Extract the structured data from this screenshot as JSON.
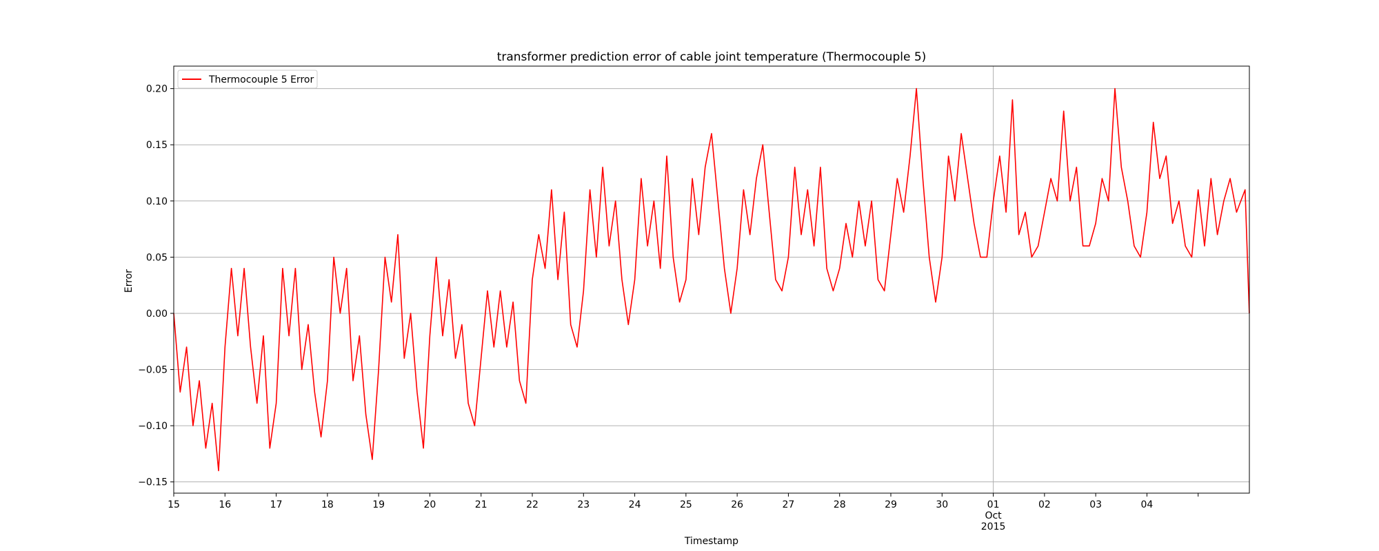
{
  "chart_data": {
    "type": "line",
    "title": "transformer prediction error of cable joint temperature (Thermocouple 5)",
    "xlabel": "Timestamp",
    "ylabel": "Error",
    "xlim": [
      "2015-09-15",
      "2015-10-05"
    ],
    "ylim": [
      -0.16,
      0.22
    ],
    "grid": "horizontal at y ticks; one vertical line at 2015-10-01",
    "legend": {
      "position": "top-left",
      "entries": [
        "Thermocouple 5 Error"
      ]
    },
    "colors": {
      "series": "#ff0000",
      "grid": "#b0b0b0",
      "axes": "#000000"
    },
    "y_ticks": [
      {
        "value": 0.2,
        "label": "0.20"
      },
      {
        "value": 0.15,
        "label": "0.15"
      },
      {
        "value": 0.1,
        "label": "0.10"
      },
      {
        "value": 0.05,
        "label": "0.05"
      },
      {
        "value": 0.0,
        "label": "0.00"
      },
      {
        "value": -0.05,
        "label": "−0.05"
      },
      {
        "value": -0.1,
        "label": "−0.10"
      },
      {
        "value": -0.15,
        "label": "−0.15"
      }
    ],
    "x_ticks": [
      {
        "date": "2015-09-15",
        "label": "15"
      },
      {
        "date": "2015-09-16",
        "label": "16"
      },
      {
        "date": "2015-09-17",
        "label": "17"
      },
      {
        "date": "2015-09-18",
        "label": "18"
      },
      {
        "date": "2015-09-19",
        "label": "19"
      },
      {
        "date": "2015-09-20",
        "label": "20"
      },
      {
        "date": "2015-09-21",
        "label": "21"
      },
      {
        "date": "2015-09-22",
        "label": "22"
      },
      {
        "date": "2015-09-23",
        "label": "23"
      },
      {
        "date": "2015-09-24",
        "label": "24"
      },
      {
        "date": "2015-09-25",
        "label": "25"
      },
      {
        "date": "2015-09-26",
        "label": "26"
      },
      {
        "date": "2015-09-27",
        "label": "27"
      },
      {
        "date": "2015-09-28",
        "label": "28"
      },
      {
        "date": "2015-09-29",
        "label": "29"
      },
      {
        "date": "2015-09-30",
        "label": "30"
      },
      {
        "date": "2015-10-01",
        "label": "01",
        "sublabels": [
          "Oct",
          "2015"
        ]
      },
      {
        "date": "2015-10-02",
        "label": "02"
      },
      {
        "date": "2015-10-03",
        "label": "03"
      },
      {
        "date": "2015-10-04",
        "label": "04"
      },
      {
        "date": "2015-10-05",
        "label": ""
      }
    ],
    "series": [
      {
        "name": "Thermocouple 5 Error",
        "points": [
          [
            "2015-09-15 00:00",
            0.0
          ],
          [
            "2015-09-15 03:00",
            -0.07
          ],
          [
            "2015-09-15 06:00",
            -0.03
          ],
          [
            "2015-09-15 09:00",
            -0.1
          ],
          [
            "2015-09-15 12:00",
            -0.06
          ],
          [
            "2015-09-15 15:00",
            -0.12
          ],
          [
            "2015-09-15 18:00",
            -0.08
          ],
          [
            "2015-09-15 21:00",
            -0.14
          ],
          [
            "2015-09-16 00:00",
            -0.03
          ],
          [
            "2015-09-16 03:00",
            0.04
          ],
          [
            "2015-09-16 06:00",
            -0.02
          ],
          [
            "2015-09-16 09:00",
            0.04
          ],
          [
            "2015-09-16 12:00",
            -0.03
          ],
          [
            "2015-09-16 15:00",
            -0.08
          ],
          [
            "2015-09-16 18:00",
            -0.02
          ],
          [
            "2015-09-16 21:00",
            -0.12
          ],
          [
            "2015-09-17 00:00",
            -0.08
          ],
          [
            "2015-09-17 03:00",
            0.04
          ],
          [
            "2015-09-17 06:00",
            -0.02
          ],
          [
            "2015-09-17 09:00",
            0.04
          ],
          [
            "2015-09-17 12:00",
            -0.05
          ],
          [
            "2015-09-17 15:00",
            -0.01
          ],
          [
            "2015-09-17 18:00",
            -0.07
          ],
          [
            "2015-09-17 21:00",
            -0.11
          ],
          [
            "2015-09-18 00:00",
            -0.06
          ],
          [
            "2015-09-18 03:00",
            0.05
          ],
          [
            "2015-09-18 06:00",
            0.0
          ],
          [
            "2015-09-18 09:00",
            0.04
          ],
          [
            "2015-09-18 12:00",
            -0.06
          ],
          [
            "2015-09-18 15:00",
            -0.02
          ],
          [
            "2015-09-18 18:00",
            -0.09
          ],
          [
            "2015-09-18 21:00",
            -0.13
          ],
          [
            "2015-09-19 00:00",
            -0.05
          ],
          [
            "2015-09-19 03:00",
            0.05
          ],
          [
            "2015-09-19 06:00",
            0.01
          ],
          [
            "2015-09-19 09:00",
            0.07
          ],
          [
            "2015-09-19 12:00",
            -0.04
          ],
          [
            "2015-09-19 15:00",
            0.0
          ],
          [
            "2015-09-19 18:00",
            -0.07
          ],
          [
            "2015-09-19 21:00",
            -0.12
          ],
          [
            "2015-09-20 00:00",
            -0.02
          ],
          [
            "2015-09-20 03:00",
            0.05
          ],
          [
            "2015-09-20 06:00",
            -0.02
          ],
          [
            "2015-09-20 09:00",
            0.03
          ],
          [
            "2015-09-20 12:00",
            -0.04
          ],
          [
            "2015-09-20 15:00",
            -0.01
          ],
          [
            "2015-09-20 18:00",
            -0.08
          ],
          [
            "2015-09-20 21:00",
            -0.1
          ],
          [
            "2015-09-21 00:00",
            -0.04
          ],
          [
            "2015-09-21 03:00",
            0.02
          ],
          [
            "2015-09-21 06:00",
            -0.03
          ],
          [
            "2015-09-21 09:00",
            0.02
          ],
          [
            "2015-09-21 12:00",
            -0.03
          ],
          [
            "2015-09-21 15:00",
            0.01
          ],
          [
            "2015-09-21 18:00",
            -0.06
          ],
          [
            "2015-09-21 21:00",
            -0.08
          ],
          [
            "2015-09-22 00:00",
            0.03
          ],
          [
            "2015-09-22 03:00",
            0.07
          ],
          [
            "2015-09-22 06:00",
            0.04
          ],
          [
            "2015-09-22 09:00",
            0.11
          ],
          [
            "2015-09-22 12:00",
            0.03
          ],
          [
            "2015-09-22 15:00",
            0.09
          ],
          [
            "2015-09-22 18:00",
            -0.01
          ],
          [
            "2015-09-22 21:00",
            -0.03
          ],
          [
            "2015-09-23 00:00",
            0.02
          ],
          [
            "2015-09-23 03:00",
            0.11
          ],
          [
            "2015-09-23 06:00",
            0.05
          ],
          [
            "2015-09-23 09:00",
            0.13
          ],
          [
            "2015-09-23 12:00",
            0.06
          ],
          [
            "2015-09-23 15:00",
            0.1
          ],
          [
            "2015-09-23 18:00",
            0.03
          ],
          [
            "2015-09-23 21:00",
            -0.01
          ],
          [
            "2015-09-24 00:00",
            0.03
          ],
          [
            "2015-09-24 03:00",
            0.12
          ],
          [
            "2015-09-24 06:00",
            0.06
          ],
          [
            "2015-09-24 09:00",
            0.1
          ],
          [
            "2015-09-24 12:00",
            0.04
          ],
          [
            "2015-09-24 15:00",
            0.14
          ],
          [
            "2015-09-24 18:00",
            0.05
          ],
          [
            "2015-09-24 21:00",
            0.01
          ],
          [
            "2015-09-25 00:00",
            0.03
          ],
          [
            "2015-09-25 03:00",
            0.12
          ],
          [
            "2015-09-25 06:00",
            0.07
          ],
          [
            "2015-09-25 09:00",
            0.13
          ],
          [
            "2015-09-25 12:00",
            0.16
          ],
          [
            "2015-09-25 15:00",
            0.1
          ],
          [
            "2015-09-25 18:00",
            0.04
          ],
          [
            "2015-09-25 21:00",
            0.0
          ],
          [
            "2015-09-26 00:00",
            0.04
          ],
          [
            "2015-09-26 03:00",
            0.11
          ],
          [
            "2015-09-26 06:00",
            0.07
          ],
          [
            "2015-09-26 09:00",
            0.12
          ],
          [
            "2015-09-26 12:00",
            0.15
          ],
          [
            "2015-09-26 15:00",
            0.09
          ],
          [
            "2015-09-26 18:00",
            0.03
          ],
          [
            "2015-09-26 21:00",
            0.02
          ],
          [
            "2015-09-27 00:00",
            0.05
          ],
          [
            "2015-09-27 03:00",
            0.13
          ],
          [
            "2015-09-27 06:00",
            0.07
          ],
          [
            "2015-09-27 09:00",
            0.11
          ],
          [
            "2015-09-27 12:00",
            0.06
          ],
          [
            "2015-09-27 15:00",
            0.13
          ],
          [
            "2015-09-27 18:00",
            0.04
          ],
          [
            "2015-09-27 21:00",
            0.02
          ],
          [
            "2015-09-28 00:00",
            0.04
          ],
          [
            "2015-09-28 03:00",
            0.08
          ],
          [
            "2015-09-28 06:00",
            0.05
          ],
          [
            "2015-09-28 09:00",
            0.1
          ],
          [
            "2015-09-28 12:00",
            0.06
          ],
          [
            "2015-09-28 15:00",
            0.1
          ],
          [
            "2015-09-28 18:00",
            0.03
          ],
          [
            "2015-09-28 21:00",
            0.02
          ],
          [
            "2015-09-29 00:00",
            0.07
          ],
          [
            "2015-09-29 03:00",
            0.12
          ],
          [
            "2015-09-29 06:00",
            0.09
          ],
          [
            "2015-09-29 09:00",
            0.14
          ],
          [
            "2015-09-29 12:00",
            0.2
          ],
          [
            "2015-09-29 15:00",
            0.12
          ],
          [
            "2015-09-29 18:00",
            0.05
          ],
          [
            "2015-09-29 21:00",
            0.01
          ],
          [
            "2015-09-30 00:00",
            0.05
          ],
          [
            "2015-09-30 03:00",
            0.14
          ],
          [
            "2015-09-30 06:00",
            0.1
          ],
          [
            "2015-09-30 09:00",
            0.16
          ],
          [
            "2015-09-30 12:00",
            0.12
          ],
          [
            "2015-09-30 15:00",
            0.08
          ],
          [
            "2015-09-30 18:00",
            0.05
          ],
          [
            "2015-09-30 21:00",
            0.05
          ],
          [
            "2015-10-01 00:00",
            0.1
          ],
          [
            "2015-10-01 03:00",
            0.14
          ],
          [
            "2015-10-01 06:00",
            0.09
          ],
          [
            "2015-10-01 09:00",
            0.19
          ],
          [
            "2015-10-01 12:00",
            0.07
          ],
          [
            "2015-10-01 15:00",
            0.09
          ],
          [
            "2015-10-01 18:00",
            0.05
          ],
          [
            "2015-10-01 21:00",
            0.06
          ],
          [
            "2015-10-02 00:00",
            0.09
          ],
          [
            "2015-10-02 03:00",
            0.12
          ],
          [
            "2015-10-02 06:00",
            0.1
          ],
          [
            "2015-10-02 09:00",
            0.18
          ],
          [
            "2015-10-02 12:00",
            0.1
          ],
          [
            "2015-10-02 15:00",
            0.13
          ],
          [
            "2015-10-02 18:00",
            0.06
          ],
          [
            "2015-10-02 21:00",
            0.06
          ],
          [
            "2015-10-03 00:00",
            0.08
          ],
          [
            "2015-10-03 03:00",
            0.12
          ],
          [
            "2015-10-03 06:00",
            0.1
          ],
          [
            "2015-10-03 09:00",
            0.2
          ],
          [
            "2015-10-03 12:00",
            0.13
          ],
          [
            "2015-10-03 15:00",
            0.1
          ],
          [
            "2015-10-03 18:00",
            0.06
          ],
          [
            "2015-10-03 21:00",
            0.05
          ],
          [
            "2015-10-04 00:00",
            0.09
          ],
          [
            "2015-10-04 03:00",
            0.17
          ],
          [
            "2015-10-04 06:00",
            0.12
          ],
          [
            "2015-10-04 09:00",
            0.14
          ],
          [
            "2015-10-04 12:00",
            0.08
          ],
          [
            "2015-10-04 15:00",
            0.1
          ],
          [
            "2015-10-04 18:00",
            0.06
          ],
          [
            "2015-10-04 21:00",
            0.05
          ],
          [
            "2015-10-05 00:00",
            0.11
          ],
          [
            "2015-10-05 03:00",
            0.06
          ],
          [
            "2015-10-05 06:00",
            0.12
          ],
          [
            "2015-10-05 09:00",
            0.07
          ],
          [
            "2015-10-05 12:00",
            0.1
          ],
          [
            "2015-10-05 15:00",
            0.12
          ],
          [
            "2015-10-05 18:00",
            0.09
          ],
          [
            "2015-10-05 22:00",
            0.11
          ],
          [
            "2015-10-05 23:59",
            0.0
          ]
        ]
      }
    ]
  }
}
